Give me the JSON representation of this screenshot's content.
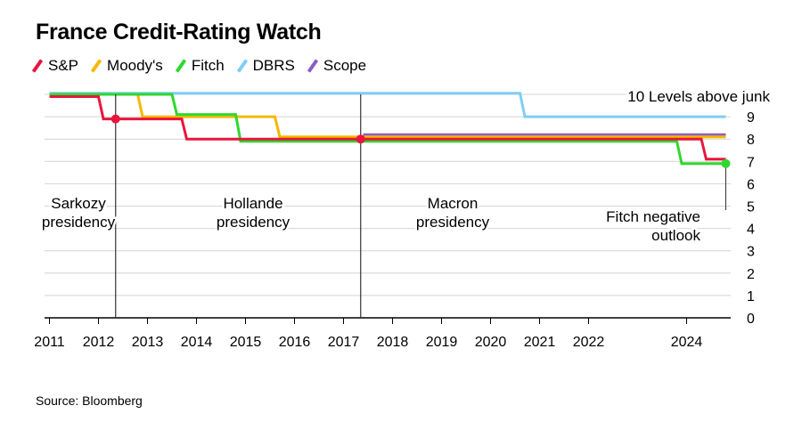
{
  "chart_data": {
    "type": "line",
    "title": "France Credit-Rating Watch",
    "source": "Source: Bloomberg",
    "ylim": [
      0,
      10
    ],
    "y_ticks": [
      0,
      1,
      2,
      3,
      4,
      5,
      6,
      7,
      8,
      9
    ],
    "x_tick_labels": [
      "2011",
      "2012",
      "2013",
      "2014",
      "2015",
      "2016",
      "2017",
      "2018",
      "2019",
      "2020",
      "2021",
      "2022",
      "2024"
    ],
    "x_tick_values": [
      2011,
      2012,
      2013,
      2014,
      2015,
      2016,
      2017,
      2018,
      2019,
      2020,
      2021,
      2022,
      2024
    ],
    "xlim": [
      2010.9,
      2024.9
    ],
    "top_label": "10 Levels above junk",
    "grid": true,
    "series": [
      {
        "name": "S&P",
        "color": "#e8163c",
        "points": [
          [
            2011.0,
            9.9
          ],
          [
            2012.0,
            9.9
          ],
          [
            2012.1,
            8.9
          ],
          [
            2013.7,
            8.9
          ],
          [
            2013.8,
            8.0
          ],
          [
            2024.3,
            8.0
          ],
          [
            2024.4,
            7.1
          ],
          [
            2024.8,
            7.1
          ]
        ]
      },
      {
        "name": "Moody's",
        "color": "#f5b800",
        "points": [
          [
            2011.0,
            10.0
          ],
          [
            2012.8,
            10.0
          ],
          [
            2012.9,
            9.0
          ],
          [
            2015.6,
            9.0
          ],
          [
            2015.7,
            8.1
          ],
          [
            2024.8,
            8.1
          ]
        ]
      },
      {
        "name": "Fitch",
        "color": "#2ed82e",
        "points": [
          [
            2011.0,
            10.0
          ],
          [
            2013.5,
            10.0
          ],
          [
            2013.6,
            9.1
          ],
          [
            2014.8,
            9.1
          ],
          [
            2014.9,
            7.9
          ],
          [
            2023.8,
            7.9
          ],
          [
            2023.9,
            6.9
          ],
          [
            2024.8,
            6.9
          ]
        ]
      },
      {
        "name": "DBRS",
        "color": "#7fcdf5",
        "points": [
          [
            2011.0,
            10.05
          ],
          [
            2020.6,
            10.05
          ],
          [
            2020.7,
            9.0
          ],
          [
            2024.8,
            9.0
          ]
        ]
      },
      {
        "name": "Scope",
        "color": "#8a5ec8",
        "points": [
          [
            2017.4,
            8.2
          ],
          [
            2024.8,
            8.2
          ]
        ]
      }
    ],
    "events": [
      {
        "x": 2012.35,
        "y": 8.9,
        "marker_color": "#e8163c"
      },
      {
        "x": 2017.35,
        "y": 8.0,
        "marker_color": "#e8163c"
      }
    ],
    "end_marker": {
      "x": 2024.8,
      "y": 6.9,
      "color": "#2ed82e"
    },
    "annotations": [
      {
        "lines": [
          "Sarkozy",
          "presidency"
        ]
      },
      {
        "lines": [
          "Hollande",
          "presidency"
        ]
      },
      {
        "lines": [
          "Macron",
          "presidency"
        ]
      },
      {
        "lines": [
          "Fitch negative",
          "outlook"
        ]
      }
    ]
  }
}
